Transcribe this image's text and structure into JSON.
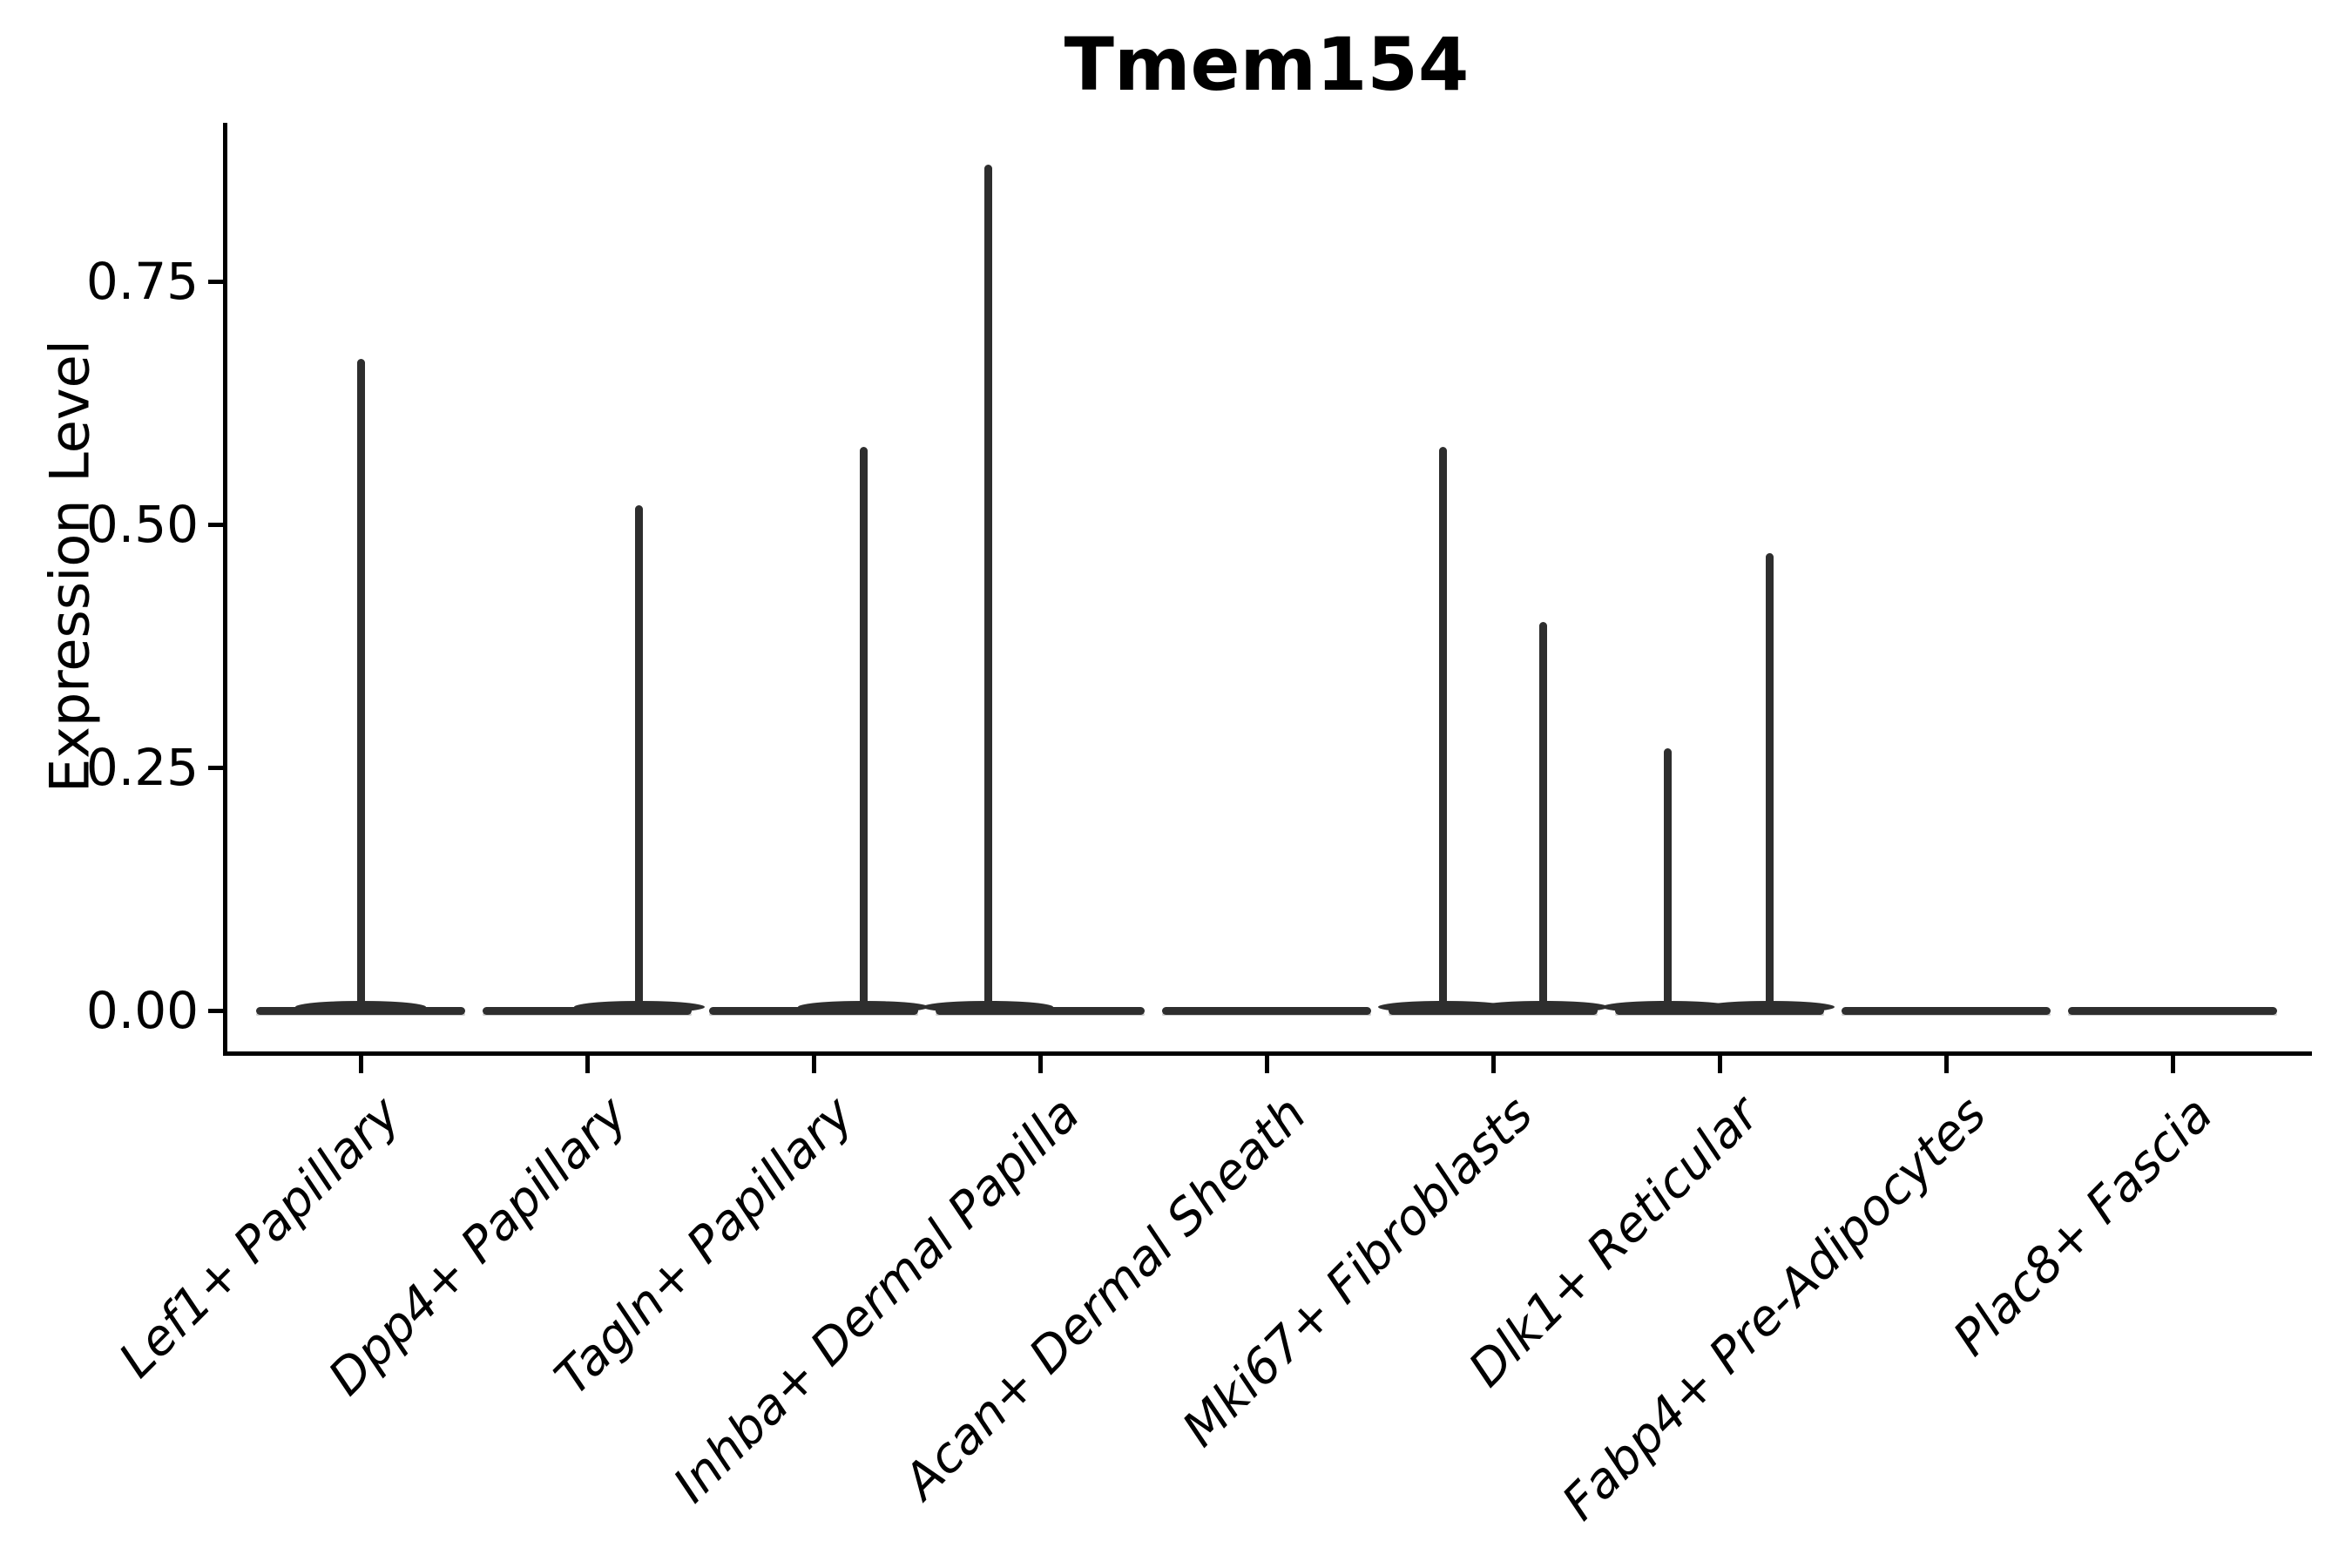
{
  "title": "Tmem154",
  "y_axis": {
    "label": "Expression Level",
    "ticks": [
      {
        "label": "0.00",
        "value": 0.0
      },
      {
        "label": "0.25",
        "value": 0.25
      },
      {
        "label": "0.50",
        "value": 0.5
      },
      {
        "label": "0.75",
        "value": 0.75
      }
    ]
  },
  "colors": {
    "violin": "#2e2e2e",
    "violin_edge": "#a8a8a8",
    "axis": "#000000",
    "background": "#ffffff"
  },
  "chart_data": {
    "type": "violin",
    "title": "Tmem154",
    "xlabel": "",
    "ylabel": "Expression Level",
    "ylim": [
      0,
      0.91
    ],
    "yticks": [
      0.0,
      0.25,
      0.5,
      0.75
    ],
    "grid": false,
    "legend": "none",
    "description": "Single-gene violin plot; each group collapses to a flat line at 0 with thin spikes reaching the maximum expression of the few expressing cells.",
    "categories": [
      "Lef1+ Papillary",
      "Dpp4+ Papillary",
      "Tagln+ Papillary",
      "Inhba+ Dermal Papilla",
      "Acan+ Dermal Sheath",
      "Mki67+ Fibroblasts",
      "Dlk1+ Reticular",
      "Fabp4+ Pre-Adipocytes",
      "Plac8+ Fascia"
    ],
    "violins": [
      {
        "category": "Lef1+ Papillary",
        "baseline": 0,
        "spikes": [
          {
            "offset": 0.0,
            "max": 0.67
          }
        ]
      },
      {
        "category": "Dpp4+ Papillary",
        "baseline": 0,
        "spikes": [
          {
            "offset": 0.23,
            "max": 0.52
          }
        ]
      },
      {
        "category": "Tagln+ Papillary",
        "baseline": 0,
        "spikes": [
          {
            "offset": 0.22,
            "max": 0.58
          }
        ]
      },
      {
        "category": "Inhba+ Dermal Papilla",
        "baseline": 0,
        "spikes": [
          {
            "offset": -0.23,
            "max": 0.87
          }
        ]
      },
      {
        "category": "Acan+ Dermal Sheath",
        "baseline": 0,
        "spikes": []
      },
      {
        "category": "Mki67+ Fibroblasts",
        "baseline": 0,
        "spikes": [
          {
            "offset": -0.22,
            "max": 0.58
          },
          {
            "offset": 0.22,
            "max": 0.4
          }
        ]
      },
      {
        "category": "Dlk1+ Reticular",
        "baseline": 0,
        "spikes": [
          {
            "offset": -0.23,
            "max": 0.27
          },
          {
            "offset": 0.22,
            "max": 0.47
          }
        ]
      },
      {
        "category": "Fabp4+ Pre-Adipocytes",
        "baseline": 0,
        "spikes": []
      },
      {
        "category": "Plac8+ Fascia",
        "baseline": 0,
        "spikes": []
      }
    ]
  }
}
